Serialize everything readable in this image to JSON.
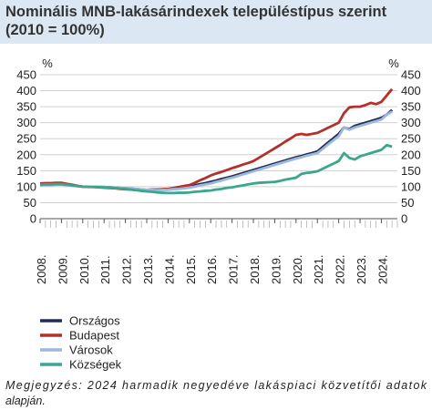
{
  "chart_data": {
    "type": "line",
    "title": "Nominális MNB-lakásárindexek településtípus szerint",
    "subtitle": "(2010 = 100%)",
    "y_unit": "%",
    "x": [
      2008,
      2008.25,
      2008.5,
      2008.75,
      2009,
      2009.25,
      2009.5,
      2009.75,
      2010,
      2010.25,
      2010.5,
      2010.75,
      2011,
      2011.25,
      2011.5,
      2011.75,
      2012,
      2012.25,
      2012.5,
      2012.75,
      2013,
      2013.25,
      2013.5,
      2013.75,
      2014,
      2014.25,
      2014.5,
      2014.75,
      2015,
      2015.25,
      2015.5,
      2015.75,
      2016,
      2016.25,
      2016.5,
      2016.75,
      2017,
      2017.25,
      2017.5,
      2017.75,
      2018,
      2018.25,
      2018.5,
      2018.75,
      2019,
      2019.25,
      2019.5,
      2019.75,
      2020,
      2020.25,
      2020.5,
      2020.75,
      2021,
      2021.25,
      2021.5,
      2021.75,
      2022,
      2022.25,
      2022.5,
      2022.75,
      2023,
      2023.25,
      2023.5,
      2023.75,
      2024,
      2024.25,
      2024.5
    ],
    "series": [
      {
        "name": "Országos",
        "color": "#1f2d52",
        "values": [
          105,
          106,
          107,
          107,
          108,
          106,
          104,
          102,
          100,
          100,
          100,
          99,
          99,
          98,
          97,
          96,
          95,
          94,
          93,
          91,
          90,
          91,
          91,
          92,
          92,
          94,
          96,
          98,
          100,
          104,
          108,
          111,
          115,
          119,
          124,
          128,
          132,
          137,
          142,
          147,
          152,
          157,
          162,
          167,
          172,
          177,
          182,
          187,
          192,
          196,
          201,
          205,
          210,
          224,
          238,
          251,
          265,
          285,
          280,
          290,
          295,
          300,
          305,
          310,
          315,
          325,
          340
        ]
      },
      {
        "name": "Budapest",
        "color": "#b3302b",
        "values": [
          110,
          111,
          111,
          112,
          112,
          109,
          106,
          103,
          100,
          99,
          99,
          98,
          97,
          96,
          95,
          93,
          92,
          91,
          90,
          89,
          88,
          89,
          90,
          92,
          93,
          96,
          99,
          102,
          105,
          112,
          120,
          127,
          135,
          141,
          146,
          152,
          158,
          163,
          169,
          174,
          180,
          190,
          200,
          210,
          220,
          230,
          241,
          251,
          262,
          265,
          262,
          265,
          268,
          276,
          284,
          292,
          300,
          330,
          348,
          350,
          350,
          355,
          362,
          358,
          365,
          385,
          405
        ]
      },
      {
        "name": "Városok",
        "color": "#9db7de",
        "values": [
          104,
          105,
          105,
          106,
          106,
          105,
          103,
          102,
          100,
          100,
          100,
          99,
          99,
          98,
          97,
          96,
          95,
          94,
          93,
          91,
          90,
          90,
          89,
          90,
          90,
          92,
          93,
          95,
          97,
          100,
          104,
          107,
          110,
          115,
          119,
          124,
          128,
          133,
          138,
          143,
          148,
          153,
          158,
          163,
          168,
          173,
          178,
          183,
          188,
          192,
          197,
          201,
          205,
          218,
          232,
          245,
          258,
          285,
          278,
          285,
          290,
          295,
          300,
          305,
          310,
          325,
          335
        ]
      },
      {
        "name": "Községek",
        "color": "#3aa68c",
        "values": [
          106,
          107,
          107,
          108,
          108,
          106,
          104,
          102,
          100,
          100,
          99,
          99,
          98,
          97,
          96,
          94,
          93,
          91,
          89,
          87,
          85,
          84,
          82,
          81,
          80,
          80,
          81,
          81,
          82,
          84,
          85,
          87,
          88,
          91,
          93,
          96,
          98,
          101,
          104,
          107,
          110,
          112,
          113,
          114,
          115,
          118,
          122,
          125,
          128,
          140,
          143,
          145,
          148,
          156,
          164,
          172,
          180,
          205,
          190,
          185,
          195,
          200,
          205,
          210,
          215,
          230,
          225
        ]
      }
    ],
    "xlim": [
      2008,
      2024.75
    ],
    "xticks": [
      {
        "value": 2008,
        "label": "2008."
      },
      {
        "value": 2009,
        "label": "2009."
      },
      {
        "value": 2010,
        "label": "2010."
      },
      {
        "value": 2011,
        "label": "2011."
      },
      {
        "value": 2012,
        "label": "2012."
      },
      {
        "value": 2013,
        "label": "2013."
      },
      {
        "value": 2014,
        "label": "2014."
      },
      {
        "value": 2015,
        "label": "2015."
      },
      {
        "value": 2016,
        "label": "2016."
      },
      {
        "value": 2017,
        "label": "2017."
      },
      {
        "value": 2018,
        "label": "2018."
      },
      {
        "value": 2019,
        "label": "2019."
      },
      {
        "value": 2020,
        "label": "2020."
      },
      {
        "value": 2021,
        "label": "2021."
      },
      {
        "value": 2022,
        "label": "2022."
      },
      {
        "value": 2023,
        "label": "2023."
      },
      {
        "value": 2024,
        "label": "2024."
      }
    ],
    "ylim": [
      0,
      450
    ],
    "yticks": [
      0,
      50,
      100,
      150,
      200,
      250,
      300,
      350,
      400,
      450
    ],
    "grid": true,
    "legend": "bottom-left",
    "note": "Megjegyzés: 2024 harmadik negyedéve lakáspiaci közvetítői adatok alapján."
  }
}
